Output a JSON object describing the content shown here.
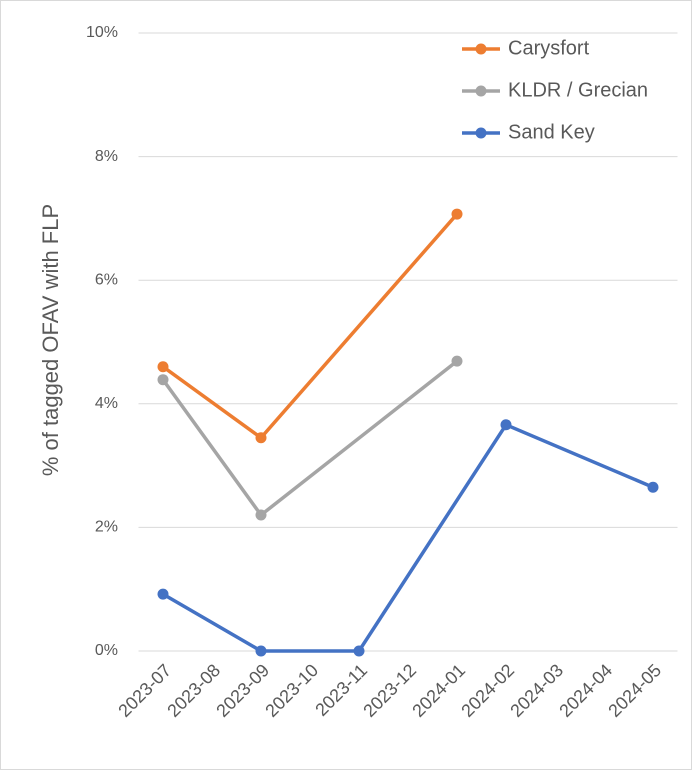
{
  "chart_data": {
    "type": "line",
    "y_label": "% of tagged OFAV with FLP",
    "categories": [
      "2023-07",
      "2023-08",
      "2023-09",
      "2023-10",
      "2023-11",
      "2023-12",
      "2024-01",
      "2024-02",
      "2024-03",
      "2024-04",
      "2024-05"
    ],
    "series": [
      {
        "name": "Carysfort",
        "color": "#ed7d31",
        "x": [
          "2023-07",
          "2023-09",
          "2024-01"
        ],
        "values": [
          4.6,
          3.45,
          7.07
        ]
      },
      {
        "name": "KLDR / Grecian",
        "color": "#a5a5a5",
        "x": [
          "2023-07",
          "2023-09",
          "2024-01"
        ],
        "values": [
          4.39,
          2.2,
          4.69
        ]
      },
      {
        "name": "Sand Key",
        "color": "#4472c4",
        "x": [
          "2023-07",
          "2023-09",
          "2023-11",
          "2024-02",
          "2024-05"
        ],
        "values": [
          0.92,
          0,
          0,
          3.66,
          2.65
        ]
      }
    ],
    "ylim": [
      0,
      10
    ],
    "yticks": [
      {
        "value": 0,
        "label": "0%"
      },
      {
        "value": 2,
        "label": "2%"
      },
      {
        "value": 4,
        "label": "4%"
      },
      {
        "value": 6,
        "label": "6%"
      },
      {
        "value": 8,
        "label": "8%"
      },
      {
        "value": 10,
        "label": "10%"
      }
    ],
    "grid": true,
    "legend": "top-right"
  }
}
